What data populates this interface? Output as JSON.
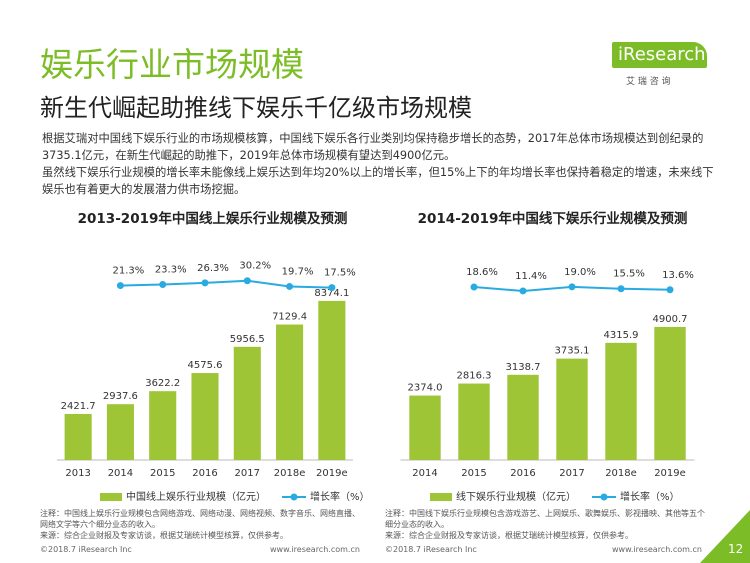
{
  "header": {
    "title": "娱乐行业市场规模",
    "subtitle": "新生代崛起助推线下娱乐千亿级市场规模",
    "logo": "iResearch",
    "logo_sub": "艾 瑞 咨 询"
  },
  "body": [
    "根据艾瑞对中国线下娱乐行业的市场规模核算，中国线下娱乐各行业类别均保持稳步增长的态势，2017年总体市场规模达到创纪录的3735.1亿元，在新生代崛起的助推下，2019年总体市场规模有望达到4900亿元。",
    "虽然线下娱乐行业规模的增长率未能像线上娱乐达到年均20%以上的增长率，但15%上下的年均增长率也保持着稳定的增速，未来线下娱乐也有着更大的发展潜力供市场挖掘。"
  ],
  "chart_data": [
    {
      "type": "bar",
      "title": "2013-2019年中国线上娱乐行业规模及预测",
      "categories": [
        "2013",
        "2014",
        "2015",
        "2016",
        "2017",
        "2018e",
        "2019e"
      ],
      "series": [
        {
          "name": "中国线上娱乐行业规模（亿元）",
          "color": "#9dc536",
          "values": [
            2421.7,
            2937.6,
            3622.2,
            4575.6,
            5956.5,
            7129.4,
            8374.1
          ]
        },
        {
          "name": "增长率（%）",
          "color": "#29abe2",
          "type": "line",
          "axis": "y2",
          "values": [
            null,
            21.3,
            23.3,
            26.3,
            30.2,
            19.7,
            17.5
          ],
          "value_labels": [
            null,
            "21.3%",
            "23.3%",
            "26.3%",
            "30.2%",
            "19.7%",
            "17.5%"
          ]
        }
      ],
      "ylim": [
        0,
        10000
      ],
      "y2lim": [
        -300,
        50
      ],
      "legend": "bottom",
      "notes": [
        "注释：中国线上娱乐行业规模包含网络游戏、网络动漫、网络视频、数字音乐、网络直播、网络文学等六个细分业态的收入。",
        "来源：综合企业财报及专家访谈，根据艾瑞统计模型核算，仅供参考。"
      ]
    },
    {
      "type": "bar",
      "title": "2014-2019年中国线下娱乐行业规模及预测",
      "categories": [
        "2014",
        "2015",
        "2016",
        "2017",
        "2018e",
        "2019e"
      ],
      "series": [
        {
          "name": "线下娱乐行业规模（亿元）",
          "color": "#9dc536",
          "values": [
            2374.0,
            2816.3,
            3138.7,
            3735.1,
            4315.9,
            4900.7
          ],
          "value_labels": [
            "2374.0",
            "2816.3",
            "3138.7",
            "3735.1",
            "4315.9",
            "4900.7"
          ]
        },
        {
          "name": "增长率（%）",
          "color": "#29abe2",
          "type": "line",
          "axis": "y2",
          "values": [
            null,
            18.6,
            11.4,
            19.0,
            15.5,
            13.6
          ],
          "value_labels": [
            null,
            "18.6%",
            "11.4%",
            "19.0%",
            "15.5%",
            "13.6%"
          ]
        }
      ],
      "ylim": [
        0,
        7000
      ],
      "y2lim": [
        -300,
        50
      ],
      "legend": "bottom",
      "notes": [
        "注释：中国线下娱乐行业规模包含游戏游艺、上网娱乐、歌舞娱乐、影视播映、其他等五个细分业态的收入。",
        "来源：综合企业财报及专家访谈，根据艾瑞统计模型核算，仅供参考。"
      ]
    }
  ],
  "footer": {
    "copyright": "©2018.7 iResearch Inc",
    "url": "www.iresearch.com.cn",
    "page": "12"
  }
}
